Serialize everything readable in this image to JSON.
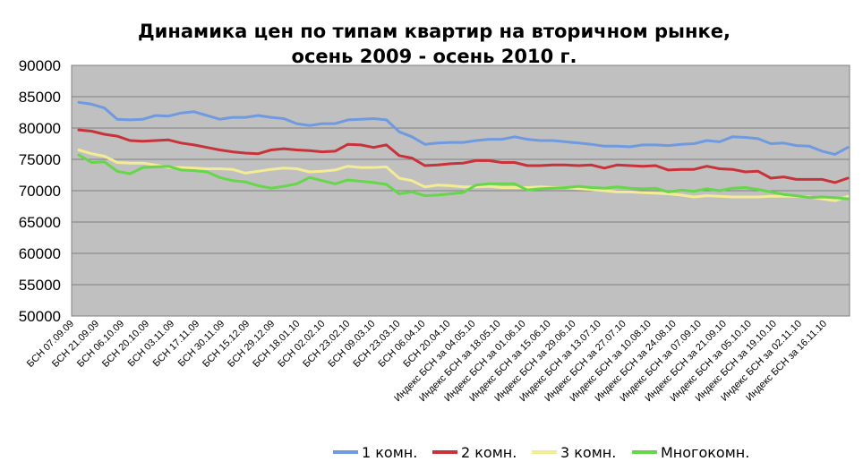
{
  "chart_data": {
    "type": "line",
    "title": "Динамика цен по типам квартир на вторичном рынке,",
    "subtitle": "осень 2009 - осень 2010 г.",
    "ylim": [
      50000,
      90000
    ],
    "yticks": [
      "50000",
      "55000",
      "60000",
      "65000",
      "70000",
      "75000",
      "80000",
      "85000",
      "90000"
    ],
    "grid": true,
    "legend_position": "bottom",
    "x_tick_labels": [
      "БСН 07.09.09",
      "БСН 21.09.09",
      "БСН 06.10.09",
      "БСН 20.10.09",
      "БСН 03.11.09",
      "БСН 17.11.09",
      "БСН 30.11.09",
      "БСН 15.12.09",
      "БСН 29.12.09",
      "БСН 18.01.10",
      "БСН 02.02.10",
      "БСН 23.02.10",
      "БСН 09.03.10",
      "БСН 23.03.10",
      "БСН 06.04.10",
      "БСН 20.04.10",
      "Индекс БСН за 04.05.10",
      "Индекс БСН за 18.05.10",
      "Индекс БСН за 01.06.10",
      "Индекс БСН за 15.06.10",
      "Индекс БСН за 29.06.10",
      "Индекс БСН за 13.07.10",
      "Индекс БСН за 27.07.10",
      "Индекс БСН за 10.08.10",
      "Индекс БСН за 24.08.10",
      "Индекс БСН за 07.09.10",
      "Индекс БСН за 21.09.10",
      "Индекс БСН за 05.10.10",
      "Индекс БСН за 19.10.10",
      "Индекс БСН за 02.11.10",
      "Индекс БСН за 16.11.10"
    ],
    "series": [
      {
        "name": "1 комн.",
        "color": "#6f9ae0",
        "values": [
          84100,
          83800,
          83200,
          81400,
          81300,
          81400,
          82000,
          81900,
          82400,
          82600,
          82000,
          81400,
          81700,
          81700,
          82000,
          81700,
          81500,
          80700,
          80400,
          80700,
          80700,
          81300,
          81400,
          81500,
          81300,
          79400,
          78600,
          77400,
          77600,
          77700,
          77700,
          78000,
          78200,
          78200,
          78600,
          78200,
          78000,
          78000,
          77800,
          77600,
          77400,
          77100,
          77100,
          77000,
          77300,
          77300,
          77200,
          77400,
          77500,
          78000,
          77800,
          78600,
          78500,
          78300,
          77500,
          77600,
          77200,
          77100,
          76300,
          75800,
          76900
        ]
      },
      {
        "name": "2 комн.",
        "color": "#c8323a",
        "values": [
          79700,
          79500,
          79000,
          78700,
          78000,
          77900,
          78000,
          78100,
          77600,
          77300,
          76900,
          76500,
          76200,
          76000,
          75900,
          76500,
          76700,
          76500,
          76400,
          76200,
          76300,
          77400,
          77300,
          76900,
          77300,
          75600,
          75200,
          74000,
          74100,
          74300,
          74400,
          74800,
          74800,
          74500,
          74500,
          74000,
          74000,
          74100,
          74100,
          74000,
          74100,
          73600,
          74100,
          74000,
          73900,
          74000,
          73300,
          73400,
          73400,
          73900,
          73500,
          73400,
          73000,
          73100,
          72000,
          72200,
          71800,
          71800,
          71800,
          71300,
          72000
        ]
      },
      {
        "name": "3 комн.",
        "color": "#f3ec94",
        "values": [
          76500,
          75900,
          75500,
          74500,
          74400,
          74400,
          74100,
          73700,
          73700,
          73600,
          73500,
          73500,
          73400,
          72800,
          73100,
          73400,
          73600,
          73500,
          73000,
          73100,
          73300,
          73900,
          73700,
          73700,
          73800,
          72000,
          71600,
          70600,
          70900,
          70800,
          70600,
          70600,
          70700,
          70500,
          70500,
          70500,
          70600,
          70500,
          70500,
          70300,
          70200,
          70000,
          69800,
          69800,
          69700,
          69600,
          69500,
          69300,
          69000,
          69200,
          69100,
          69000,
          69000,
          69000,
          69100,
          69100,
          69100,
          69000,
          68700,
          68400,
          69100
        ]
      },
      {
        "name": "Многокомн.",
        "color": "#66d64a",
        "values": [
          75700,
          74500,
          74600,
          73100,
          72700,
          73700,
          73800,
          73900,
          73300,
          73200,
          73000,
          72100,
          71600,
          71400,
          70800,
          70400,
          70700,
          71100,
          72100,
          71600,
          71100,
          71700,
          71500,
          71300,
          71000,
          69500,
          69800,
          69200,
          69300,
          69500,
          69700,
          70900,
          71100,
          71100,
          71100,
          70100,
          70300,
          70400,
          70500,
          70700,
          70500,
          70400,
          70600,
          70400,
          70300,
          70400,
          69800,
          70100,
          69900,
          70300,
          70000,
          70400,
          70500,
          70200,
          69800,
          69400,
          69200,
          68900,
          69000,
          68900,
          68700
        ]
      }
    ]
  }
}
